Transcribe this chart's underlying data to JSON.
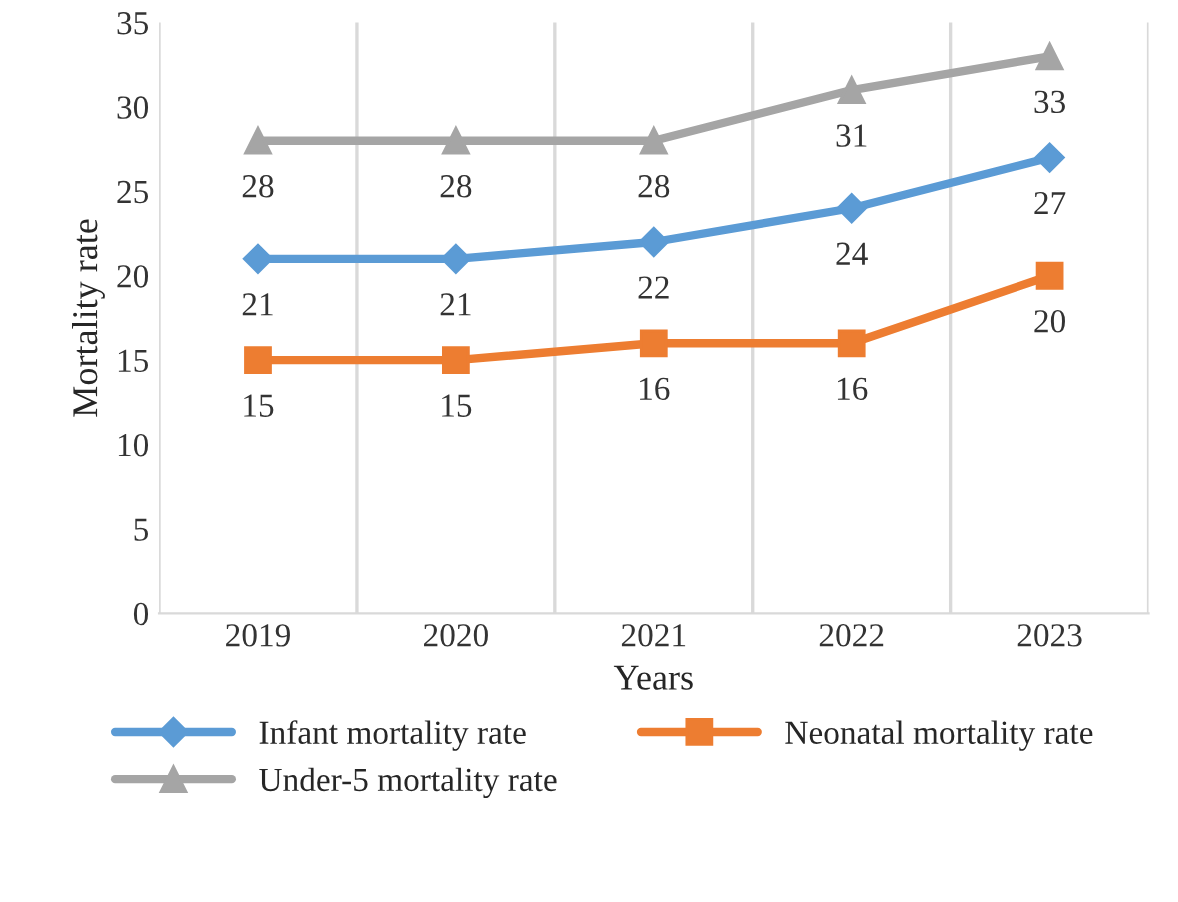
{
  "chart_data": {
    "type": "line",
    "xlabel": "Years",
    "ylabel": "Mortality rate",
    "categories": [
      "2019",
      "2020",
      "2021",
      "2022",
      "2023"
    ],
    "series": [
      {
        "name": "Infant mortality rate",
        "color": "#5b9bd5",
        "marker": "diamond",
        "values": [
          21,
          21,
          22,
          24,
          27
        ]
      },
      {
        "name": "Neonatal mortality rate",
        "color": "#ed7d31",
        "marker": "square",
        "values": [
          15,
          15,
          16,
          16,
          20
        ]
      },
      {
        "name": "Under-5 mortality rate",
        "color": "#a5a5a5",
        "marker": "triangle",
        "values": [
          28,
          28,
          28,
          31,
          33
        ]
      }
    ],
    "ylim": [
      0,
      35
    ],
    "yticks": [
      0,
      5,
      10,
      15,
      20,
      25,
      30,
      35
    ],
    "grid": "x",
    "legend": "bottom",
    "data_labels": true,
    "line_style": "solid"
  }
}
